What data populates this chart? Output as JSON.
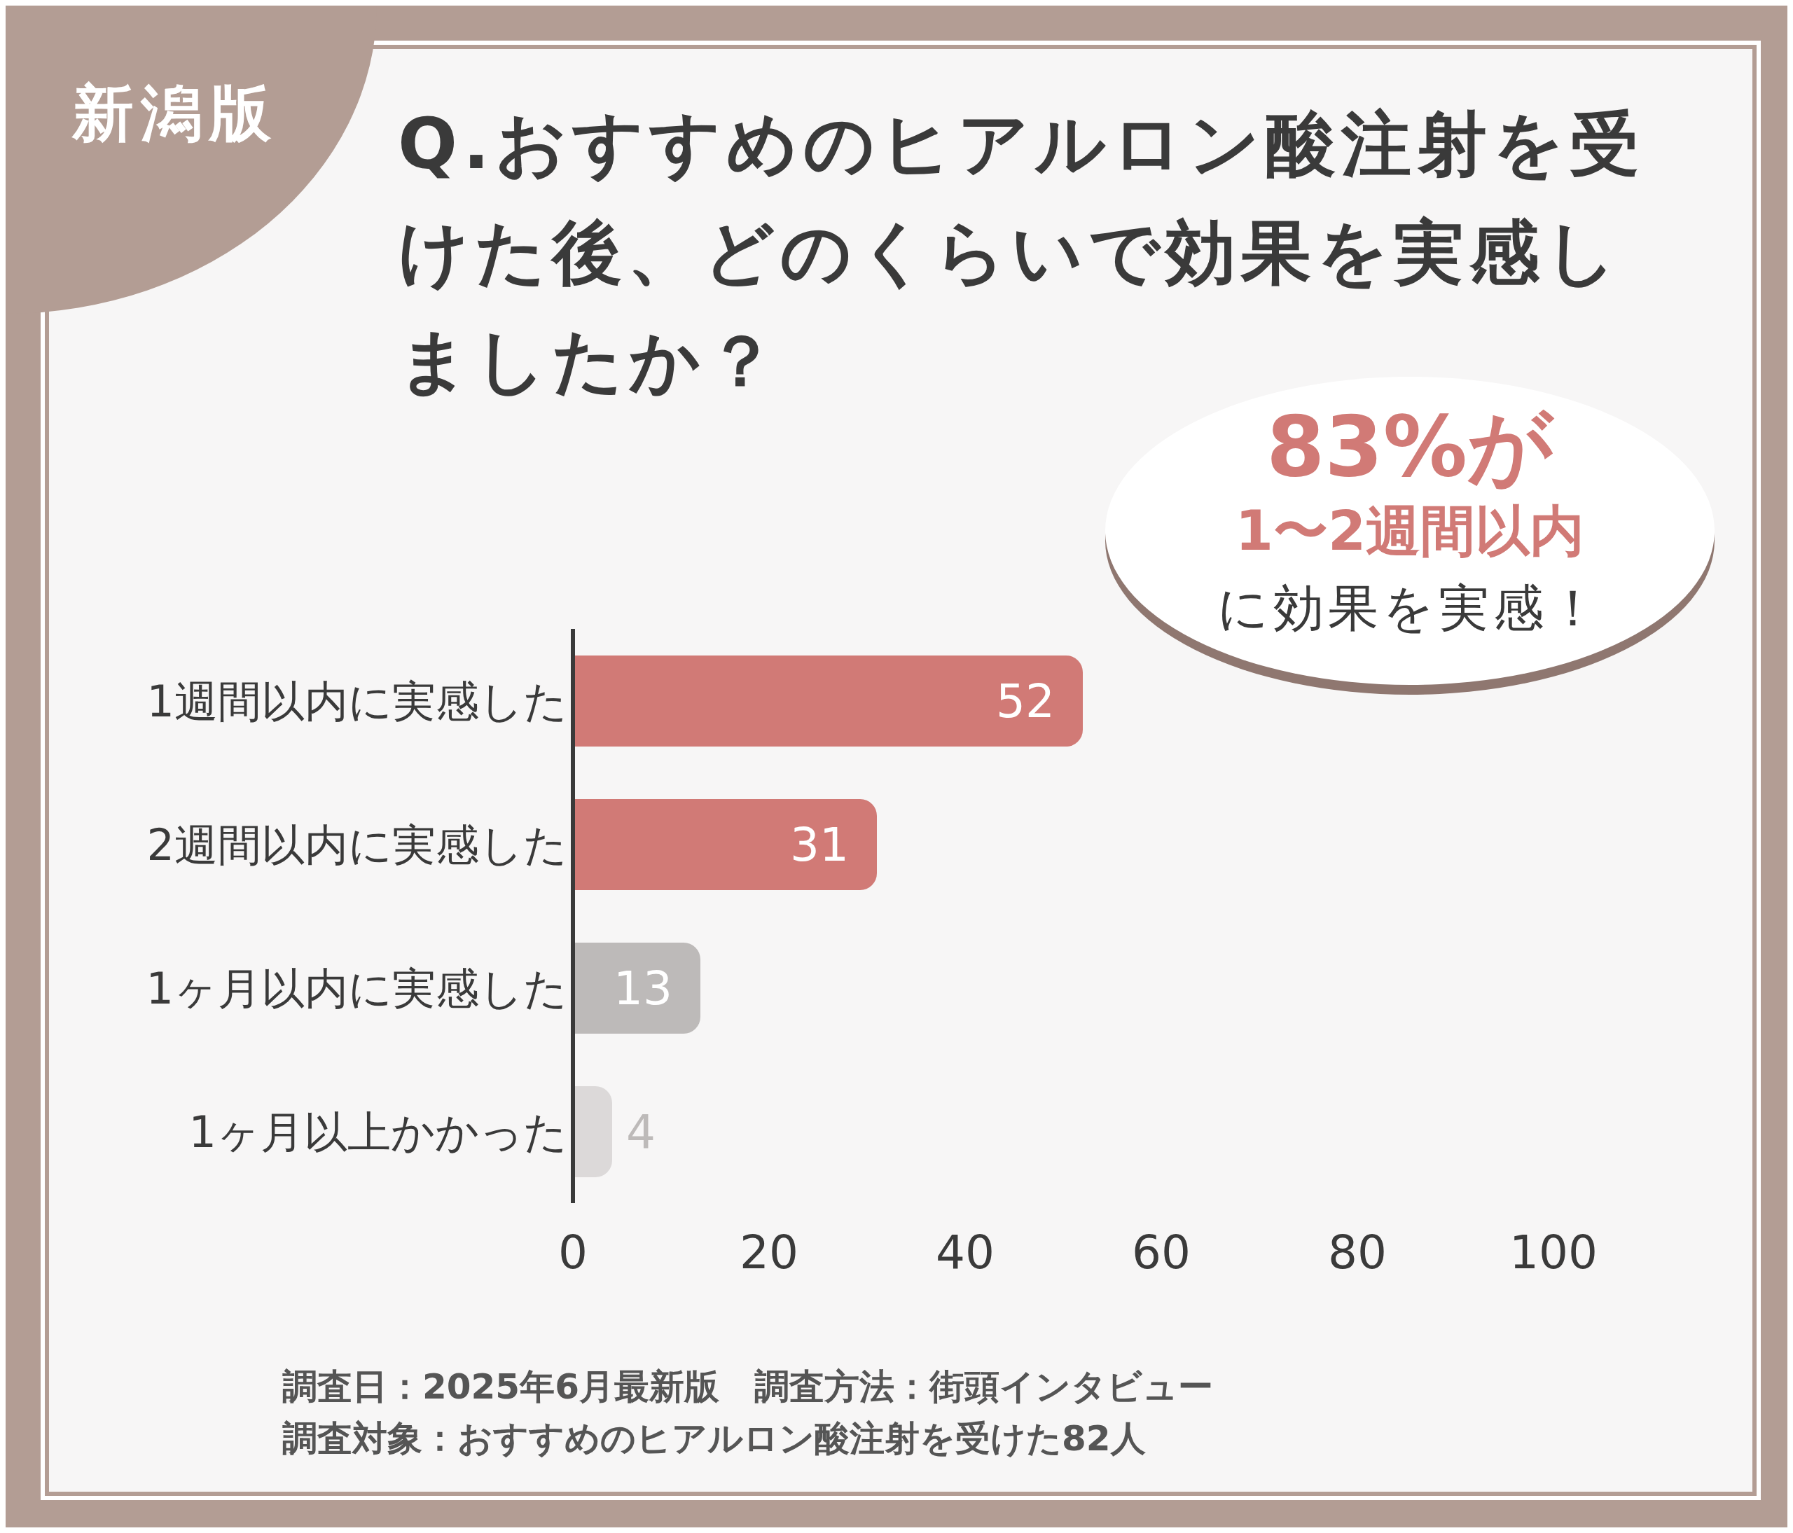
{
  "chart_data": {
    "type": "bar",
    "orientation": "horizontal",
    "title": "Q.おすすめのヒアルロン酸注射を受けた後、どのくらいで効果を実感しましたか？",
    "categories": [
      "1週間以内に実感した",
      "2週間以内に実感した",
      "1ヶ月以内に実感した",
      "1ヶ月以上かかった"
    ],
    "values": [
      52,
      31,
      13,
      4
    ],
    "colors": [
      "#d17a76",
      "#d17a76",
      "#bdbab9",
      "#dcd9d9"
    ],
    "xlim": [
      0,
      100
    ],
    "xticks": [
      0,
      20,
      40,
      60,
      80,
      100
    ],
    "data_labels": true,
    "annotations": [
      "新潟版",
      "83%が",
      "1〜2週間以内",
      "に効果を実感！",
      "調査日：2025年6月最新版　調査方法：街頭インタビュー",
      "調査対象：おすすめのヒアルロン酸注射を受けた82人"
    ]
  }
}
